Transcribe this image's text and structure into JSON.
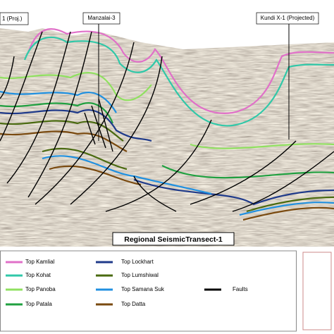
{
  "wells": [
    {
      "label": "1 (Proj.)"
    },
    {
      "label": "Manzalai-3"
    },
    {
      "label": "Kundi X-1 (Projected)"
    }
  ],
  "section_title": "Regional SeismicTransect-1",
  "legend": {
    "items": [
      {
        "label": "Top Kamlial",
        "color": "#e070c8"
      },
      {
        "label": "Top Kohat",
        "color": "#30c8a8"
      },
      {
        "label": "Top Panoba",
        "color": "#90e060"
      },
      {
        "label": "Top Patala",
        "color": "#20a040"
      },
      {
        "label": "Top Lockhart",
        "color": "#1f3a8a"
      },
      {
        "label": "Top Lumshiwal",
        "color": "#4a6a10"
      },
      {
        "label": "Top Samana Suk",
        "color": "#2090e0"
      },
      {
        "label": "Top Datta",
        "color": "#7a4a10"
      },
      {
        "label": "Faults",
        "color": "#000000"
      }
    ]
  }
}
